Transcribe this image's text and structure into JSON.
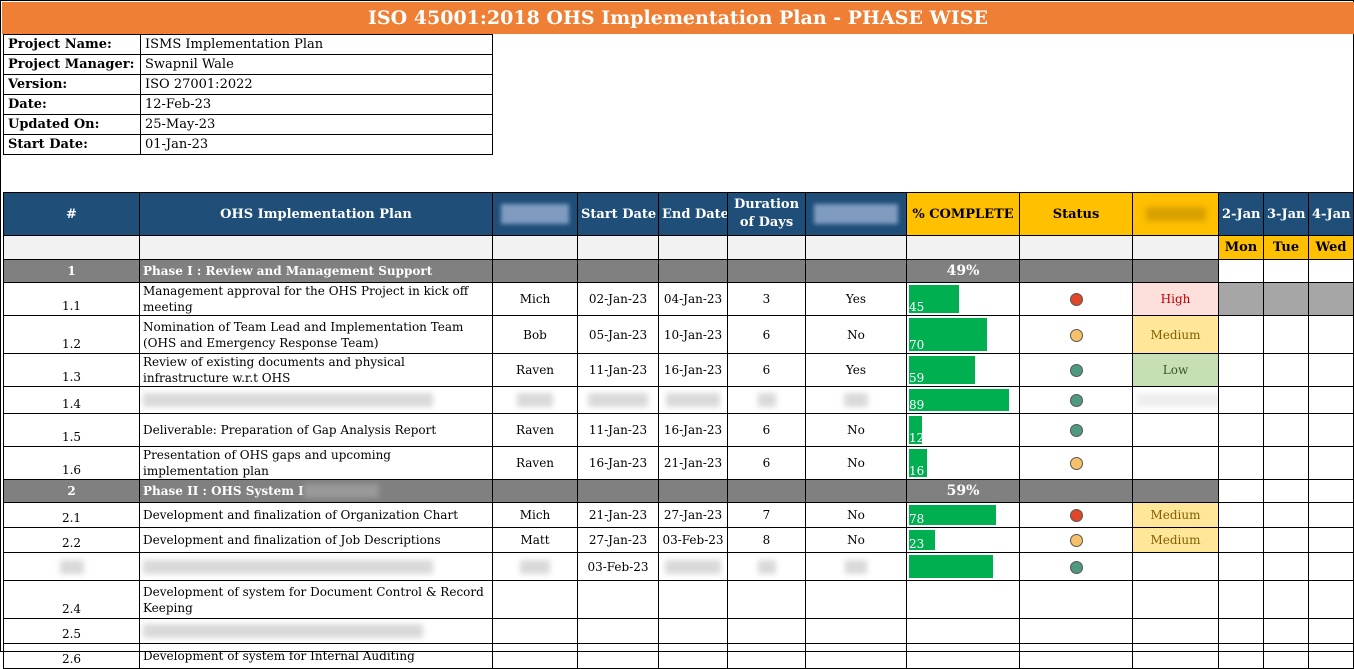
{
  "title": "ISO 45001:2018 OHS Implementation Plan - PHASE WISE",
  "info": [
    {
      "label": "Project Name:",
      "value": "ISMS Implementation Plan"
    },
    {
      "label": "Project Manager:",
      "value": "Swapnil Wale"
    },
    {
      "label": "Version:",
      "value": "ISO 27001:2022"
    },
    {
      "label": "Date:",
      "value": "12-Feb-23"
    },
    {
      "label": "Updated On:",
      "value": "25-May-23"
    },
    {
      "label": "Start Date:",
      "value": "01-Jan-23"
    }
  ],
  "headers": {
    "num": "#",
    "plan": "OHS Implementation Plan",
    "start": "Start Date",
    "end": "End Date",
    "duration": "Duration of Days",
    "pct": "% COMPLETE",
    "status": "Status",
    "dates": [
      "2-Jan",
      "3-Jan",
      "4-Jan"
    ],
    "days": [
      "Mon",
      "Tue",
      "Wed"
    ]
  },
  "colors": {
    "title": "#ee7f34",
    "header": "#1f4e78",
    "accent": "#ffc000",
    "bar": "#00b050",
    "red": "#e0472a",
    "yellow": "#f5c26b",
    "green": "#4e9a7e"
  },
  "phases": [
    {
      "num": "1",
      "title": "Phase I : Review and Management Support",
      "pct": "49%"
    },
    {
      "num": "2",
      "title": "Phase II : OHS System I",
      "pct": "59%"
    }
  ],
  "rows": {
    "r11": {
      "num": "1.1",
      "desc": "Management approval for the OHS Project in kick off meeting",
      "owner": "Mich",
      "start": "02-Jan-23",
      "end": "04-Jan-23",
      "dur": "3",
      "flag": "Yes",
      "pct": 45,
      "pct_label": "45",
      "status": "red",
      "priority": "High"
    },
    "r12": {
      "num": "1.2",
      "desc": "Nomination of Team Lead and Implementation Team (OHS and Emergency Response Team)",
      "owner": "Bob",
      "start": "05-Jan-23",
      "end": "10-Jan-23",
      "dur": "6",
      "flag": "No",
      "pct": 70,
      "pct_label": "70",
      "status": "yellow",
      "priority": "Medium"
    },
    "r13": {
      "num": "1.3",
      "desc": "Review of existing documents and physical infrastructure w.r.t OHS",
      "owner": "Raven",
      "start": "11-Jan-23",
      "end": "16-Jan-23",
      "dur": "6",
      "flag": "Yes",
      "pct": 59,
      "pct_label": "59",
      "status": "green",
      "priority": "Low"
    },
    "r14": {
      "num": "1.4",
      "pct": 89,
      "pct_label": "89",
      "status": "green"
    },
    "r15": {
      "num": "1.5",
      "desc": "Deliverable: Preparation of Gap Analysis Report",
      "owner": "Raven",
      "start": "11-Jan-23",
      "end": "16-Jan-23",
      "dur": "6",
      "flag": "No",
      "pct": 12,
      "pct_label": "12",
      "status": "green"
    },
    "r16": {
      "num": "1.6",
      "desc": "Presentation of OHS gaps and upcoming implementation plan",
      "owner": "Raven",
      "start": "16-Jan-23",
      "end": "21-Jan-23",
      "dur": "6",
      "flag": "No",
      "pct": 16,
      "pct_label": "16",
      "status": "yellow"
    },
    "r21": {
      "num": "2.1",
      "desc": "Development and finalization of Organization Chart",
      "owner": "Mich",
      "start": "21-Jan-23",
      "end": "27-Jan-23",
      "dur": "7",
      "flag": "No",
      "pct": 78,
      "pct_label": "78",
      "status": "red",
      "priority": "Medium"
    },
    "r22": {
      "num": "2.2",
      "desc": "Development and finalization of  Job Descriptions",
      "owner": "Matt",
      "start": "27-Jan-23",
      "end": "03-Feb-23",
      "dur": "8",
      "flag": "No",
      "pct": 23,
      "pct_label": "23",
      "status": "yellow",
      "priority": "Medium"
    },
    "r23": {
      "start": "03-Feb-23",
      "pct": 75,
      "status": "green"
    },
    "r24": {
      "num": "2.4",
      "desc": "Development of system for Document Control & Record Keeping"
    },
    "r25": {
      "num": "2.5"
    },
    "r26": {
      "num": "2.6",
      "desc": "Development of system for Internal Auditing"
    }
  }
}
